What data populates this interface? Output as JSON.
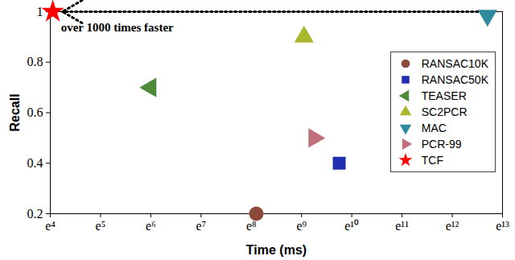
{
  "chart_data": {
    "type": "scatter",
    "xlabel": "Time (ms)",
    "ylabel": "Recall",
    "log": "x",
    "grid": false,
    "legend": "right",
    "annotation": "over 1000 times faster",
    "xlim": [
      54.598,
      442413.392
    ],
    "xticks": [
      {
        "value": 54.598,
        "label": "e⁴"
      },
      {
        "value": 148.413,
        "label": "e⁵"
      },
      {
        "value": 403.429,
        "label": "e⁶"
      },
      {
        "value": 1096.633,
        "label": "e⁷"
      },
      {
        "value": 2980.958,
        "label": "e⁸"
      },
      {
        "value": 8103.084,
        "label": "e⁹"
      },
      {
        "value": 22026.466,
        "label": "e¹⁰"
      },
      {
        "value": 59874.142,
        "label": "e¹¹"
      },
      {
        "value": 162754.791,
        "label": "e¹²"
      },
      {
        "value": 442413.392,
        "label": "e¹³"
      }
    ],
    "ylim": [
      0.2,
      1
    ],
    "yticks": [
      0.2,
      0.4,
      0.6,
      0.8,
      1
    ],
    "series": [
      {
        "name": "RANSAC10K",
        "color": "#8b4a3a",
        "marker": "circle",
        "x": [
          3294
        ],
        "values": [
          0.2
        ]
      },
      {
        "name": "RANSAC50K",
        "color": "#1f2fb0",
        "marker": "square",
        "x": [
          17154
        ],
        "values": [
          0.4
        ]
      },
      {
        "name": "TEASER",
        "color": "#4e8a3a",
        "marker": "triangle-left",
        "x": [
          403
        ],
        "values": [
          0.7
        ]
      },
      {
        "name": "SC2PCR",
        "color": "#a8b82a",
        "marker": "triangle-up",
        "x": [
          8518
        ],
        "values": [
          0.9
        ]
      },
      {
        "name": "MAC",
        "color": "#2e8b9e",
        "marker": "triangle-down",
        "x": [
          327748
        ],
        "values": [
          0.985
        ]
      },
      {
        "name": "PCR-99",
        "color": "#c0707a",
        "marker": "triangle-right",
        "x": [
          10405
        ],
        "values": [
          0.5
        ]
      },
      {
        "name": "TCF",
        "color": "#ff0000",
        "marker": "star",
        "x": [
          57.4
        ],
        "values": [
          1
        ]
      }
    ]
  }
}
